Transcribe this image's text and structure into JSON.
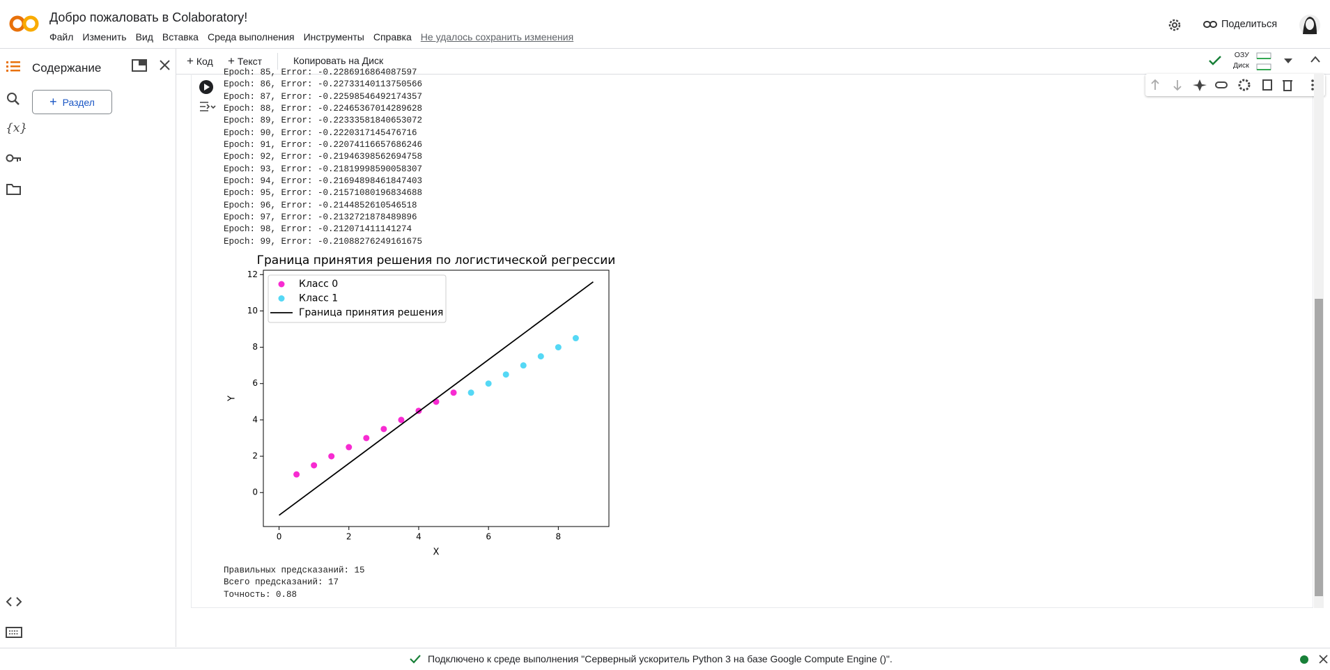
{
  "header": {
    "title": "Добро пожаловать в Colaboratory!",
    "menu": [
      "Файл",
      "Изменить",
      "Вид",
      "Вставка",
      "Среда выполнения",
      "Инструменты",
      "Справка"
    ],
    "save_status": "Не удалось сохранить изменения",
    "share": "Поделиться"
  },
  "sidebar": {
    "title": "Содержание",
    "add_section": "Раздел"
  },
  "toolbar": {
    "add_code": "Код",
    "add_text": "Текст",
    "copy_to_drive": "Копировать на Диск",
    "ram": "ОЗУ",
    "disk": "Диск"
  },
  "output": {
    "log_lines": [
      "Epoch: 85, Error: -0.2286916864087597",
      "Epoch: 86, Error: -0.22733140113750566",
      "Epoch: 87, Error: -0.22598546492174357",
      "Epoch: 88, Error: -0.22465367014289628",
      "Epoch: 89, Error: -0.22333581840653072",
      "Epoch: 90, Error: -0.2220317145476716",
      "Epoch: 91, Error: -0.22074116657686246",
      "Epoch: 92, Error: -0.21946398562694758",
      "Epoch: 93, Error: -0.21819998590058307",
      "Epoch: 94, Error: -0.21694898461847403",
      "Epoch: 95, Error: -0.21571080196834688",
      "Epoch: 96, Error: -0.2144852610546518",
      "Epoch: 97, Error: -0.2132721878489896",
      "Epoch: 98, Error: -0.212071411141274",
      "Epoch: 99, Error: -0.21088276249161675"
    ],
    "summary": [
      "Правильных предсказаний: 15",
      "Всего предсказаний: 17",
      "Точность: 0.88"
    ]
  },
  "chart_data": {
    "type": "scatter",
    "title": "Граница принятия решения по логистической регрессии",
    "x_label": "X",
    "y_label": "Y",
    "xlim": [
      -0.45,
      9.45
    ],
    "ylim": [
      -1.87,
      12.24
    ],
    "xticks": [
      0,
      2,
      4,
      6,
      8
    ],
    "yticks": [
      0,
      2,
      4,
      6,
      8,
      10,
      12
    ],
    "grid": false,
    "legend": "upper left",
    "series": [
      {
        "name": "Класс 0",
        "type": "scatter",
        "color": "#f72bd1",
        "x": [
          0.5,
          1,
          1.5,
          2,
          2.5,
          3,
          3.5,
          4,
          4.5,
          5
        ],
        "values": [
          1,
          1.5,
          2,
          2.5,
          3,
          3.5,
          4,
          4.5,
          5,
          5.5
        ]
      },
      {
        "name": "Класс 1",
        "type": "scatter",
        "color": "#55d8f5",
        "x": [
          5.5,
          6,
          6.5,
          7,
          7.5,
          8,
          8.5
        ],
        "values": [
          5.5,
          6,
          6.5,
          7,
          7.5,
          8,
          8.5
        ]
      },
      {
        "name": "Граница принятия решения",
        "type": "line",
        "color": "#000000",
        "x": [
          0,
          9
        ],
        "values": [
          -1.25,
          11.6
        ]
      }
    ]
  },
  "status_bar": {
    "text": "Подключено к среде выполнения \"Серверный ускоритель Python 3 на базе Google Compute Engine ()\"."
  }
}
